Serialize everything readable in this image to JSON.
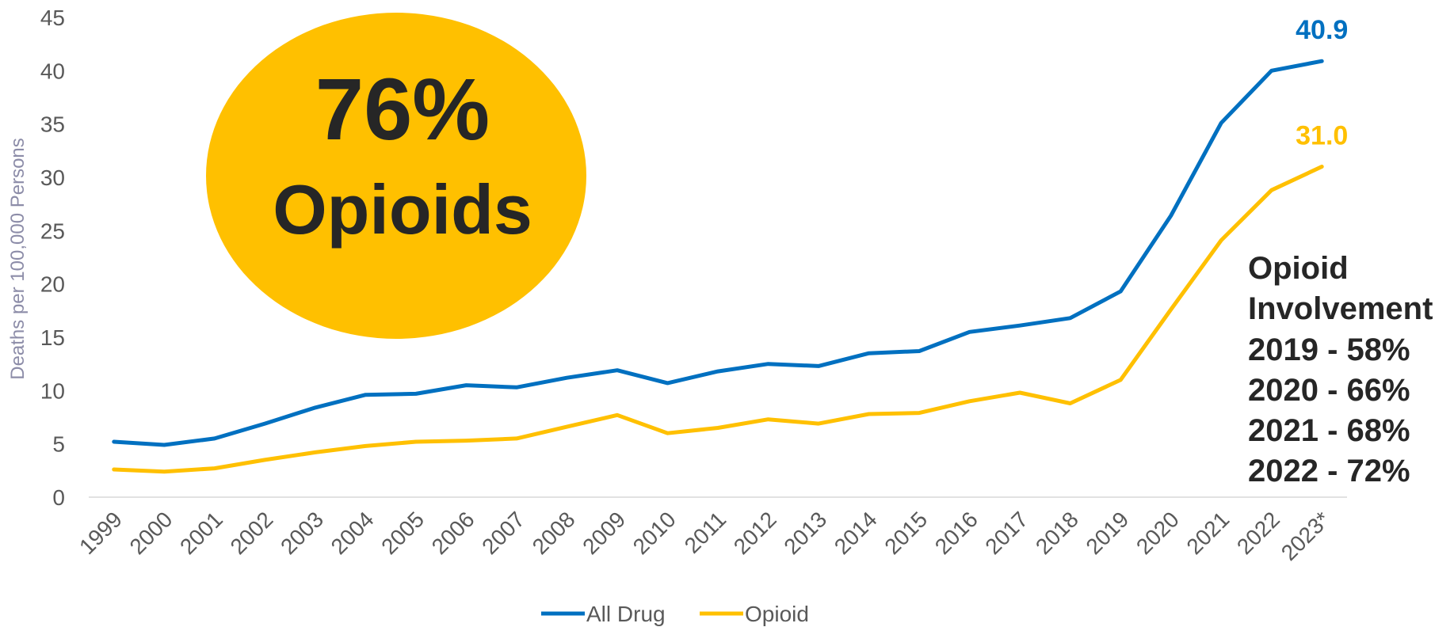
{
  "chart_data": {
    "type": "line",
    "title": "",
    "xlabel": "",
    "ylabel": "Deaths per 100,000 Persons",
    "ylim": [
      0,
      45
    ],
    "yticks": [
      0,
      5,
      10,
      15,
      20,
      25,
      30,
      35,
      40,
      45
    ],
    "grid": false,
    "legend": "bottom-center",
    "categories": [
      "1999",
      "2000",
      "2001",
      "2002",
      "2003",
      "2004",
      "2005",
      "2006",
      "2007",
      "2008",
      "2009",
      "2010",
      "2011",
      "2012",
      "2013",
      "2014",
      "2015",
      "2016",
      "2017",
      "2018",
      "2019",
      "2020",
      "2021",
      "2022",
      "2023*"
    ],
    "series": [
      {
        "name": "All Drug",
        "color": "#0070C0",
        "values": [
          5.2,
          4.9,
          5.5,
          6.9,
          8.4,
          9.6,
          9.7,
          10.5,
          10.3,
          11.2,
          11.9,
          10.7,
          11.8,
          12.5,
          12.3,
          13.5,
          13.7,
          15.5,
          16.1,
          16.8,
          19.3,
          26.4,
          35.1,
          40.0,
          40.9
        ],
        "end_label": "40.9"
      },
      {
        "name": "Opioid",
        "color": "#FFC000",
        "values": [
          2.6,
          2.4,
          2.7,
          3.5,
          4.2,
          4.8,
          5.2,
          5.3,
          5.5,
          6.6,
          7.7,
          6.0,
          6.5,
          7.3,
          6.9,
          7.8,
          7.9,
          9.0,
          9.8,
          8.8,
          11.0,
          17.6,
          24.1,
          28.8,
          31.0
        ],
        "end_label": "31.0"
      }
    ],
    "callout": {
      "percent": "76%",
      "label": "Opioids",
      "color": "#FFC000"
    },
    "involvement": {
      "title_line1": "Opioid",
      "title_line2": "Involvement",
      "rows": [
        "2019 - 58%",
        "2020 - 66%",
        "2021 - 68%",
        "2022 - 72%"
      ]
    }
  }
}
